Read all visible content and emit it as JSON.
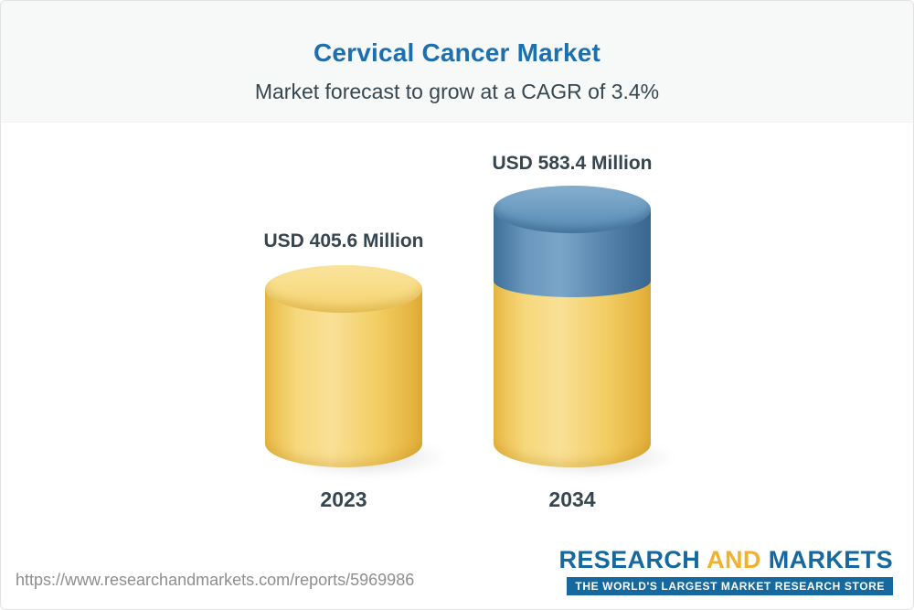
{
  "header": {
    "title": "Cervical Cancer Market",
    "subtitle": "Market forecast to grow at a CAGR of 3.4%"
  },
  "chart_data": {
    "type": "bar",
    "bar_style": "3d-cylinder",
    "title": "Cervical Cancer Market",
    "subtitle": "Market forecast to grow at a CAGR of 3.4%",
    "unit": "USD Million",
    "cagr_percent": 3.4,
    "categories": [
      "2023",
      "2034"
    ],
    "values": [
      405.6,
      583.4
    ],
    "value_labels": [
      "USD 405.6 Million",
      "USD 583.4 Million"
    ],
    "legend": "none",
    "grid": false,
    "bar_base_color": "#f6cf63",
    "bar_growth_segment_color": "#4d80a8"
  },
  "bars": [
    {
      "year": "2023",
      "label": "USD 405.6 Million"
    },
    {
      "year": "2034",
      "label": "USD 583.4 Million"
    }
  ],
  "footer": {
    "source_url": "https://www.researchandmarkets.com/reports/5969986",
    "logo": {
      "word1": "RESEARCH",
      "word2": "AND",
      "word3": "MARKETS",
      "tagline": "THE WORLD'S LARGEST MARKET RESEARCH STORE"
    }
  },
  "colors": {
    "title_blue": "#1d6fad",
    "text_dark": "#36454e",
    "bar_yellow": "#f6cf63",
    "bar_blue": "#4d80a8",
    "logo_blue": "#16699e",
    "logo_gold": "#f2b02f",
    "url_gray": "#8e8e8e",
    "header_band": "#f7f8f8"
  }
}
